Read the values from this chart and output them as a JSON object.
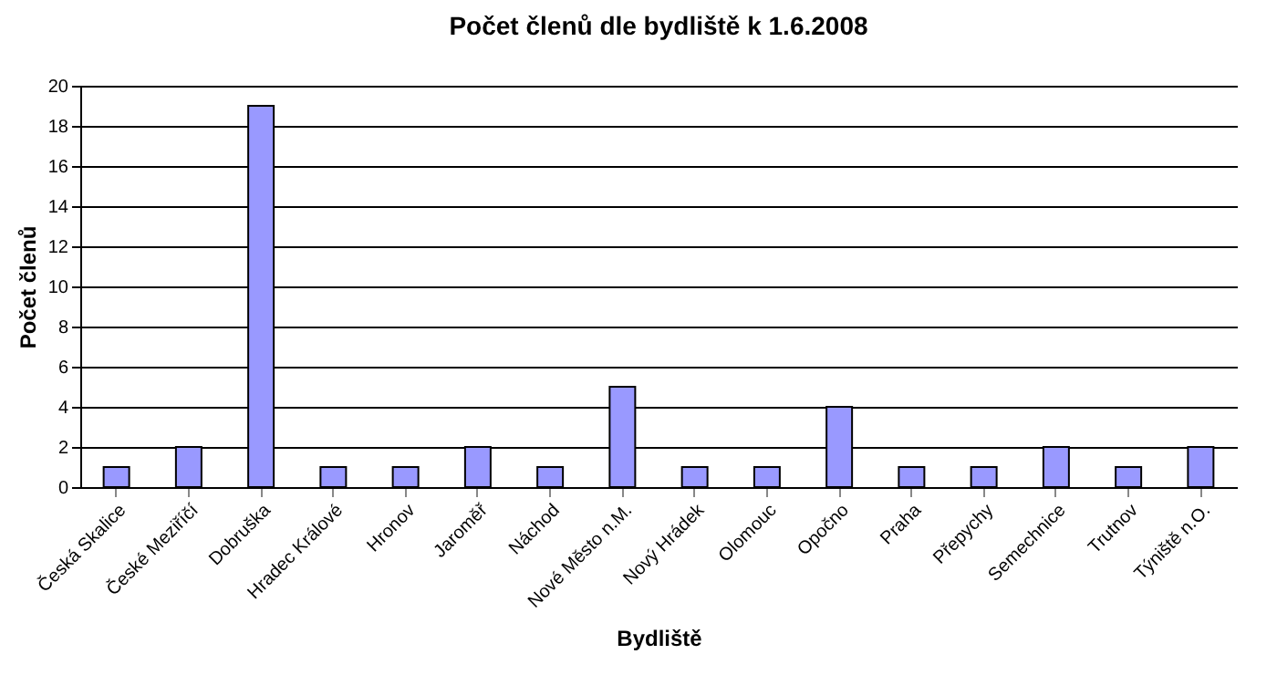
{
  "chart_data": {
    "type": "bar",
    "title": "Počet členů dle bydliště k 1.6.2008",
    "xlabel": "Bydliště",
    "ylabel": "Počet členů",
    "categories": [
      "Česká Skalice",
      "České Meziříčí",
      "Dobruška",
      "Hradec Králové",
      "Hronov",
      "Jaroměř",
      "Náchod",
      "Nové Město n.M.",
      "Nový Hrádek",
      "Olomouc",
      "Opočno",
      "Praha",
      "Přepychy",
      "Semechnice",
      "Trutnov",
      "Týniště n.O."
    ],
    "values": [
      1,
      2,
      19,
      1,
      1,
      2,
      1,
      5,
      1,
      1,
      4,
      1,
      1,
      2,
      1,
      2
    ],
    "color": "#9999ff",
    "ylim": [
      0,
      20
    ],
    "yticks": [
      0,
      2,
      4,
      6,
      8,
      10,
      12,
      14,
      16,
      18,
      20
    ],
    "grid": "y"
  }
}
